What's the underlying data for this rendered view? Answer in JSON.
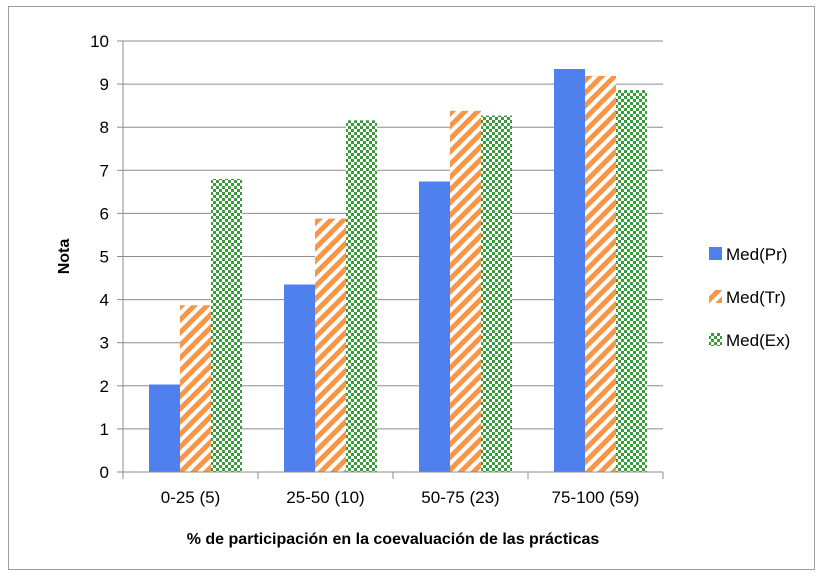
{
  "chart_data": {
    "type": "bar",
    "categories": [
      "0-25 (5)",
      "25-50 (10)",
      "50-75 (23)",
      "75-100 (59)"
    ],
    "series": [
      {
        "name": "Med(Pr)",
        "values": [
          2.03,
          4.35,
          6.74,
          9.35
        ],
        "color": "#4f81ee",
        "fill": "solid"
      },
      {
        "name": "Med(Tr)",
        "values": [
          3.87,
          5.88,
          8.38,
          9.19
        ],
        "color": "#f79646",
        "fill": "diagonal-stripes"
      },
      {
        "name": "Med(Ex)",
        "values": [
          6.8,
          8.16,
          8.27,
          8.86
        ],
        "color": "#3c9a3c",
        "fill": "checker-dots"
      }
    ],
    "title": "",
    "xlabel": "% de participación en la coevaluación de las prácticas",
    "ylabel": "Nota",
    "ylim": [
      0,
      10
    ],
    "yticks": [
      "0",
      "1",
      "2",
      "3",
      "4",
      "5",
      "6",
      "7",
      "8",
      "9",
      "10"
    ],
    "grid": true,
    "legend_position": "right"
  }
}
